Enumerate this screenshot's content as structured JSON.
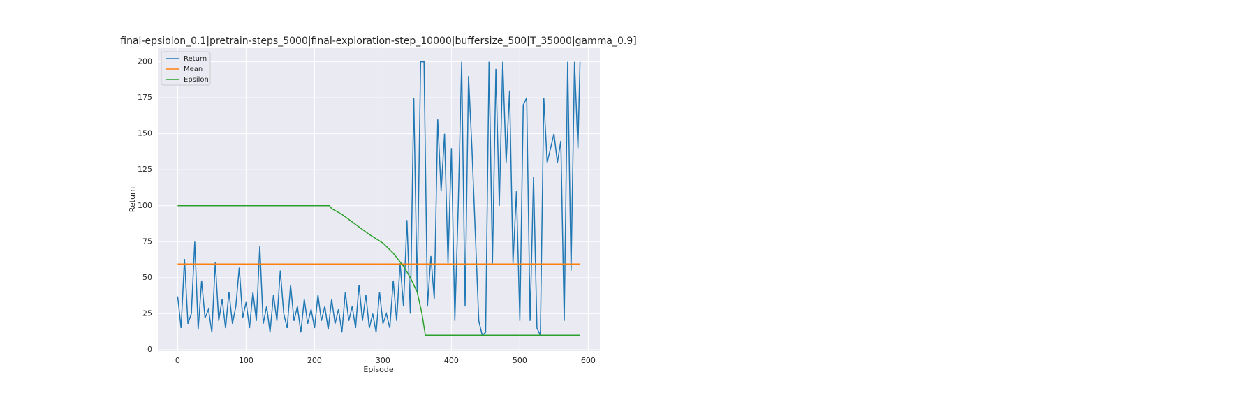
{
  "chart_data": {
    "type": "line",
    "title": "final-epsiolon_0.1|pretrain-steps_5000|final-exploration-step_10000|buffersize_500|T_35000|gamma_0.9]",
    "x_label": "Episode",
    "y_label": "Return",
    "xlim": [
      -29,
      617
    ],
    "ylim": [
      -1,
      209.5
    ],
    "xticks": [
      0,
      100,
      200,
      300,
      400,
      500,
      600
    ],
    "yticks": [
      0,
      25,
      50,
      75,
      100,
      125,
      150,
      175,
      200
    ],
    "grid": true,
    "legend": "upper-left",
    "series": [
      {
        "name": "Return",
        "color": "#1f77b4",
        "x": [
          0,
          5,
          10,
          15,
          20,
          25,
          30,
          35,
          40,
          45,
          50,
          55,
          60,
          65,
          70,
          75,
          80,
          85,
          90,
          95,
          100,
          105,
          110,
          115,
          120,
          125,
          130,
          135,
          140,
          145,
          150,
          155,
          160,
          165,
          170,
          175,
          180,
          185,
          190,
          195,
          200,
          205,
          210,
          215,
          220,
          225,
          230,
          235,
          240,
          245,
          250,
          255,
          260,
          265,
          270,
          275,
          280,
          285,
          290,
          295,
          300,
          305,
          310,
          315,
          320,
          325,
          330,
          335,
          340,
          345,
          350,
          355,
          360,
          365,
          370,
          375,
          380,
          385,
          390,
          395,
          400,
          405,
          410,
          415,
          420,
          425,
          430,
          435,
          440,
          445,
          450,
          455,
          460,
          465,
          470,
          475,
          480,
          485,
          490,
          495,
          500,
          505,
          510,
          515,
          520,
          525,
          530,
          535,
          540,
          545,
          550,
          555,
          560,
          565,
          570,
          575,
          580,
          585,
          588
        ],
        "values": [
          37,
          15,
          63,
          18,
          25,
          75,
          14,
          48,
          22,
          28,
          12,
          61,
          20,
          35,
          15,
          40,
          18,
          30,
          57,
          22,
          33,
          15,
          40,
          20,
          72,
          18,
          30,
          12,
          38,
          20,
          55,
          25,
          15,
          45,
          20,
          30,
          12,
          35,
          18,
          28,
          15,
          38,
          20,
          30,
          14,
          35,
          18,
          28,
          12,
          40,
          20,
          30,
          15,
          45,
          20,
          38,
          15,
          25,
          12,
          40,
          18,
          25,
          15,
          48,
          20,
          60,
          30,
          90,
          25,
          175,
          40,
          200,
          200,
          30,
          65,
          35,
          160,
          110,
          150,
          60,
          140,
          20,
          100,
          200,
          30,
          190,
          140,
          80,
          20,
          10,
          12,
          200,
          60,
          195,
          100,
          200,
          130,
          180,
          60,
          110,
          20,
          170,
          175,
          20,
          120,
          15,
          10,
          175,
          130,
          140,
          150,
          130,
          145,
          20,
          200,
          55,
          200,
          140,
          200
        ]
      },
      {
        "name": "Mean",
        "color": "#ff7f0e",
        "x": [
          0,
          588
        ],
        "values": [
          59.5,
          59.5
        ]
      },
      {
        "name": "Epsilon",
        "color": "#2ca02c",
        "x": [
          0,
          222,
          225,
          240,
          260,
          280,
          300,
          315,
          330,
          340,
          350,
          357,
          362,
          588
        ],
        "values": [
          100,
          100,
          98,
          94,
          87,
          80,
          74,
          67,
          58,
          50,
          40,
          25,
          10,
          10
        ]
      }
    ]
  }
}
